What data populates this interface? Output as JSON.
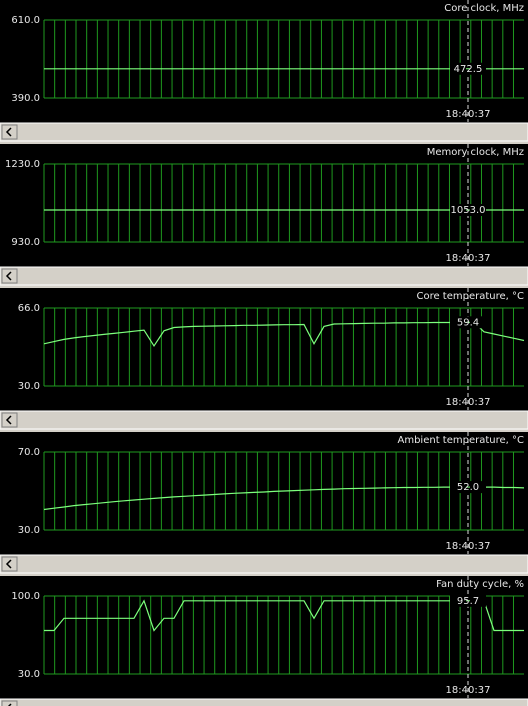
{
  "chart_data": [
    {
      "type": "line",
      "title": "Core clock, MHz",
      "color": "#7dff7d",
      "grid": true,
      "ylim": [
        390,
        610
      ],
      "yticks": [
        {
          "value": 610,
          "label": "610.0"
        },
        {
          "value": 390,
          "label": "390.0"
        }
      ],
      "values": [
        472.5,
        472.5,
        472.5,
        472.5,
        472.5,
        472.5,
        472.5,
        472.5,
        472.5,
        472.5,
        472.5,
        472.5,
        472.5,
        472.5,
        472.5,
        472.5,
        472.5,
        472.5,
        472.5,
        472.5,
        472.5,
        472.5,
        472.5,
        472.5,
        472.5,
        472.5,
        472.5,
        472.5,
        472.5,
        472.5,
        472.5,
        472.5,
        472.5,
        472.5,
        472.5,
        472.5,
        472.5,
        472.5,
        472.5,
        472.5,
        472.5,
        472.5,
        472.5,
        472.5,
        472.5,
        472.5,
        472.5,
        472.5,
        472.5
      ],
      "cursor": {
        "time": "18:40:37",
        "value": 472.5
      }
    },
    {
      "type": "line",
      "title": "Memory clock, MHz",
      "color": "#7dff7d",
      "grid": true,
      "ylim": [
        930,
        1230
      ],
      "yticks": [
        {
          "value": 1230,
          "label": "1230.0"
        },
        {
          "value": 930,
          "label": "930.0"
        }
      ],
      "values": [
        1053,
        1053,
        1053,
        1053,
        1053,
        1053,
        1053,
        1053,
        1053,
        1053,
        1053,
        1053,
        1053,
        1053,
        1053,
        1053,
        1053,
        1053,
        1053,
        1053,
        1053,
        1053,
        1053,
        1053,
        1053,
        1053,
        1053,
        1053,
        1053,
        1053,
        1053,
        1053,
        1053,
        1053,
        1053,
        1053,
        1053,
        1053,
        1053,
        1053,
        1053,
        1053,
        1053,
        1053,
        1053,
        1053,
        1053,
        1053,
        1053
      ],
      "cursor": {
        "time": "18:40:37",
        "value": {
          "value": 1053,
          "label": "1053.0"
        }
      }
    },
    {
      "type": "line",
      "title": "Core temperature, °C",
      "color": "#7dff7d",
      "grid": true,
      "ylim": [
        30,
        66
      ],
      "yticks": [
        {
          "value": 66,
          "label": "66.0"
        },
        {
          "value": 30,
          "label": "30.0"
        }
      ],
      "values": [
        49.5,
        50.5,
        51.5,
        52.2,
        52.8,
        53.3,
        53.8,
        54.3,
        54.8,
        55.3,
        55.8,
        48.5,
        55.5,
        57,
        57.3,
        57.5,
        57.6,
        57.7,
        57.8,
        57.9,
        58,
        58,
        58.1,
        58.2,
        58.3,
        58.3,
        58.4,
        49.5,
        57.5,
        58.6,
        58.7,
        58.8,
        58.9,
        59,
        59,
        59.1,
        59.1,
        59.2,
        59.2,
        59.3,
        59.3,
        59.3,
        59.4,
        59.4,
        55,
        54,
        53,
        52,
        51
      ],
      "cursor": {
        "time": "18:40:37",
        "value": 59.4
      }
    },
    {
      "type": "line",
      "title": "Ambient temperature, °C",
      "color": "#7dff7d",
      "grid": true,
      "ylim": [
        30,
        70
      ],
      "yticks": [
        {
          "value": 70,
          "label": "70.0"
        },
        {
          "value": 30,
          "label": "30.0"
        }
      ],
      "values": [
        40.5,
        41.2,
        41.8,
        42.5,
        43,
        43.5,
        44,
        44.5,
        45,
        45.4,
        45.8,
        46.2,
        46.6,
        47,
        47.3,
        47.6,
        47.9,
        48.2,
        48.5,
        48.8,
        49,
        49.3,
        49.5,
        49.8,
        50,
        50.2,
        50.4,
        50.6,
        50.8,
        51,
        51.2,
        51.3,
        51.4,
        51.5,
        51.6,
        51.7,
        51.8,
        51.8,
        51.9,
        51.9,
        52,
        52,
        52,
        52,
        52,
        52,
        51.8,
        51.8,
        51.6
      ],
      "cursor": {
        "time": "18:40:37",
        "value": {
          "value": 52,
          "label": "52.0"
        }
      }
    },
    {
      "type": "line",
      "title": "Fan duty cycle, %",
      "color": "#7dff7d",
      "grid": true,
      "ylim": [
        30,
        100
      ],
      "yticks": [
        {
          "value": 100,
          "label": "100.0"
        },
        {
          "value": 30,
          "label": "30.0"
        }
      ],
      "values": [
        69,
        69,
        80,
        80,
        80,
        80,
        80,
        80,
        80,
        80,
        95.7,
        69,
        80,
        80,
        95.7,
        95.7,
        95.7,
        95.7,
        95.7,
        95.7,
        95.7,
        95.7,
        95.7,
        95.7,
        95.7,
        95.7,
        95.7,
        80,
        95.7,
        95.7,
        95.7,
        95.7,
        95.7,
        95.7,
        95.7,
        95.7,
        95.7,
        95.7,
        95.7,
        95.7,
        95.7,
        95.7,
        95.7,
        95.7,
        95.7,
        69,
        69,
        69,
        69
      ],
      "cursor": {
        "time": "18:40:37",
        "value": 95.7
      }
    }
  ]
}
